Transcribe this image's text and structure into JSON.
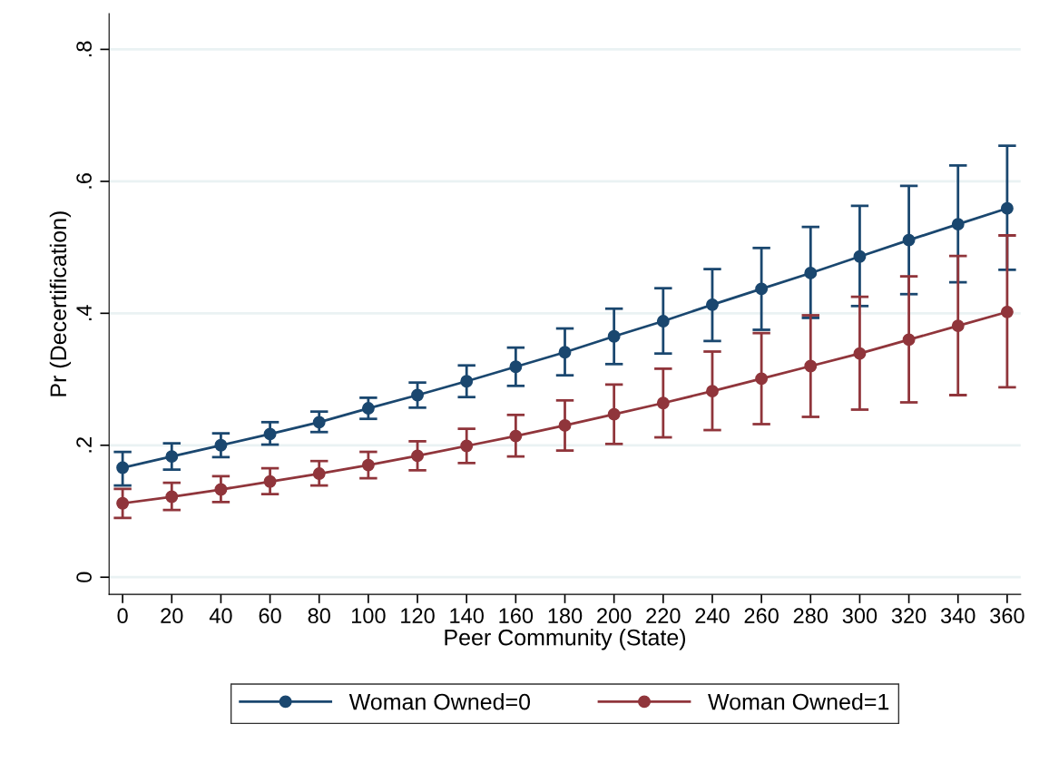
{
  "chart_data": {
    "type": "line",
    "xlabel": "Peer Community (State)",
    "ylabel": "Pr (Decertification)",
    "x": [
      0,
      20,
      40,
      60,
      80,
      100,
      120,
      140,
      160,
      180,
      200,
      220,
      240,
      260,
      280,
      300,
      320,
      340,
      360
    ],
    "series": [
      {
        "name": "Woman Owned=0",
        "color": "#1a476f",
        "values": [
          0.166,
          0.183,
          0.2,
          0.217,
          0.235,
          0.256,
          0.276,
          0.297,
          0.319,
          0.341,
          0.365,
          0.388,
          0.413,
          0.437,
          0.461,
          0.486,
          0.511,
          0.535,
          0.559
        ],
        "errors": [
          [
            0.139,
            0.19
          ],
          [
            0.163,
            0.203
          ],
          [
            0.182,
            0.218
          ],
          [
            0.201,
            0.235
          ],
          [
            0.22,
            0.251
          ],
          [
            0.24,
            0.272
          ],
          [
            0.257,
            0.295
          ],
          [
            0.273,
            0.321
          ],
          [
            0.29,
            0.348
          ],
          [
            0.306,
            0.377
          ],
          [
            0.323,
            0.407
          ],
          [
            0.339,
            0.438
          ],
          [
            0.358,
            0.467
          ],
          [
            0.375,
            0.499
          ],
          [
            0.393,
            0.531
          ],
          [
            0.411,
            0.563
          ],
          [
            0.429,
            0.593
          ],
          [
            0.447,
            0.624
          ],
          [
            0.466,
            0.654
          ]
        ]
      },
      {
        "name": "Woman Owned=1",
        "color": "#90353b",
        "values": [
          0.112,
          0.122,
          0.133,
          0.145,
          0.157,
          0.17,
          0.184,
          0.199,
          0.214,
          0.23,
          0.247,
          0.264,
          0.282,
          0.301,
          0.32,
          0.339,
          0.36,
          0.381,
          0.402
        ],
        "errors": [
          [
            0.09,
            0.134
          ],
          [
            0.102,
            0.143
          ],
          [
            0.114,
            0.153
          ],
          [
            0.126,
            0.165
          ],
          [
            0.139,
            0.176
          ],
          [
            0.15,
            0.19
          ],
          [
            0.162,
            0.206
          ],
          [
            0.173,
            0.225
          ],
          [
            0.183,
            0.246
          ],
          [
            0.192,
            0.268
          ],
          [
            0.202,
            0.292
          ],
          [
            0.212,
            0.316
          ],
          [
            0.223,
            0.342
          ],
          [
            0.232,
            0.37
          ],
          [
            0.243,
            0.397
          ],
          [
            0.254,
            0.425
          ],
          [
            0.265,
            0.456
          ],
          [
            0.276,
            0.487
          ],
          [
            0.288,
            0.518
          ]
        ]
      }
    ],
    "xlim": [
      -5.5,
      365.5
    ],
    "xticks": [
      0,
      20,
      40,
      60,
      80,
      100,
      120,
      140,
      160,
      180,
      200,
      220,
      240,
      260,
      280,
      300,
      320,
      340,
      360
    ],
    "ylim": [
      -0.026,
      0.854
    ],
    "yticks": [
      {
        "value": 0,
        "label": "0"
      },
      {
        "value": 0.2,
        "label": ".2"
      },
      {
        "value": 0.4,
        "label": ".4"
      },
      {
        "value": 0.6,
        "label": ".6"
      },
      {
        "value": 0.8,
        "label": ".8"
      }
    ],
    "grid": "y",
    "legend": "bottom",
    "marker": "circle",
    "line_style": "solid"
  }
}
